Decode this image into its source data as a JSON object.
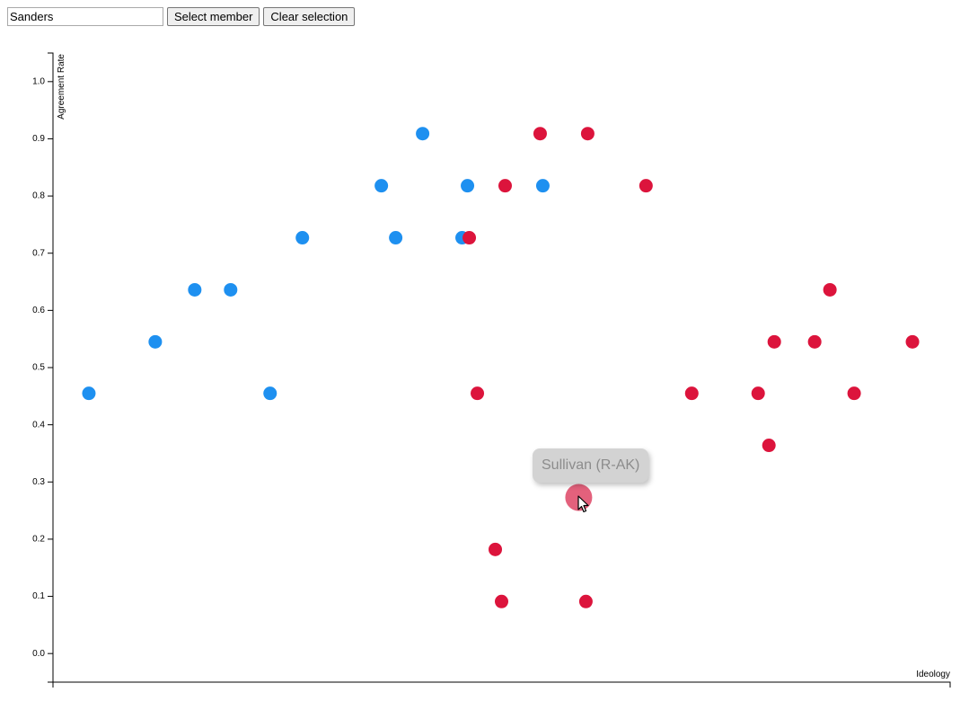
{
  "controls": {
    "member_input_value": "Sanders",
    "select_button_label": "Select member",
    "clear_button_label": "Clear selection"
  },
  "tooltip": {
    "text": "Sullivan (R-AK)"
  },
  "colors": {
    "democrat": "#1e90f0",
    "republican": "#dc143c",
    "highlight": "#e0506e",
    "tooltip_bg": "#d3d3d3",
    "tooltip_text": "#8c8c8c"
  },
  "chart_data": {
    "type": "scatter",
    "xlabel": "Ideology",
    "ylabel": "Agreement Rate",
    "xlim": [
      0,
      1
    ],
    "ylim": [
      -0.05,
      1.05
    ],
    "y_ticks": [
      "0.0",
      "0.1",
      "0.2",
      "0.3",
      "0.4",
      "0.5",
      "0.6",
      "0.7",
      "0.8",
      "0.9",
      "1.0"
    ],
    "grid": false,
    "series": [
      {
        "party": "democrat",
        "points": [
          {
            "x": 0.04,
            "y": 0.455
          },
          {
            "x": 0.114,
            "y": 0.545
          },
          {
            "x": 0.158,
            "y": 0.636
          },
          {
            "x": 0.198,
            "y": 0.636
          },
          {
            "x": 0.242,
            "y": 0.455
          },
          {
            "x": 0.278,
            "y": 0.727
          },
          {
            "x": 0.366,
            "y": 0.818
          },
          {
            "x": 0.382,
            "y": 0.727
          },
          {
            "x": 0.412,
            "y": 0.909
          },
          {
            "x": 0.456,
            "y": 0.727
          },
          {
            "x": 0.462,
            "y": 0.818
          },
          {
            "x": 0.546,
            "y": 0.818
          }
        ]
      },
      {
        "party": "republican",
        "points": [
          {
            "x": 0.464,
            "y": 0.727
          },
          {
            "x": 0.473,
            "y": 0.455
          },
          {
            "x": 0.493,
            "y": 0.182
          },
          {
            "x": 0.5,
            "y": 0.091
          },
          {
            "x": 0.504,
            "y": 0.818
          },
          {
            "x": 0.543,
            "y": 0.909
          },
          {
            "x": 0.594,
            "y": 0.091
          },
          {
            "x": 0.596,
            "y": 0.909
          },
          {
            "x": 0.661,
            "y": 0.818
          },
          {
            "x": 0.712,
            "y": 0.455
          },
          {
            "x": 0.786,
            "y": 0.455
          },
          {
            "x": 0.798,
            "y": 0.364
          },
          {
            "x": 0.804,
            "y": 0.545
          },
          {
            "x": 0.849,
            "y": 0.545
          },
          {
            "x": 0.866,
            "y": 0.636
          },
          {
            "x": 0.893,
            "y": 0.455
          },
          {
            "x": 0.958,
            "y": 0.545
          }
        ]
      }
    ],
    "highlighted": {
      "label": "Sullivan (R-AK)",
      "party": "republican",
      "x": 0.586,
      "y": 0.273
    }
  }
}
